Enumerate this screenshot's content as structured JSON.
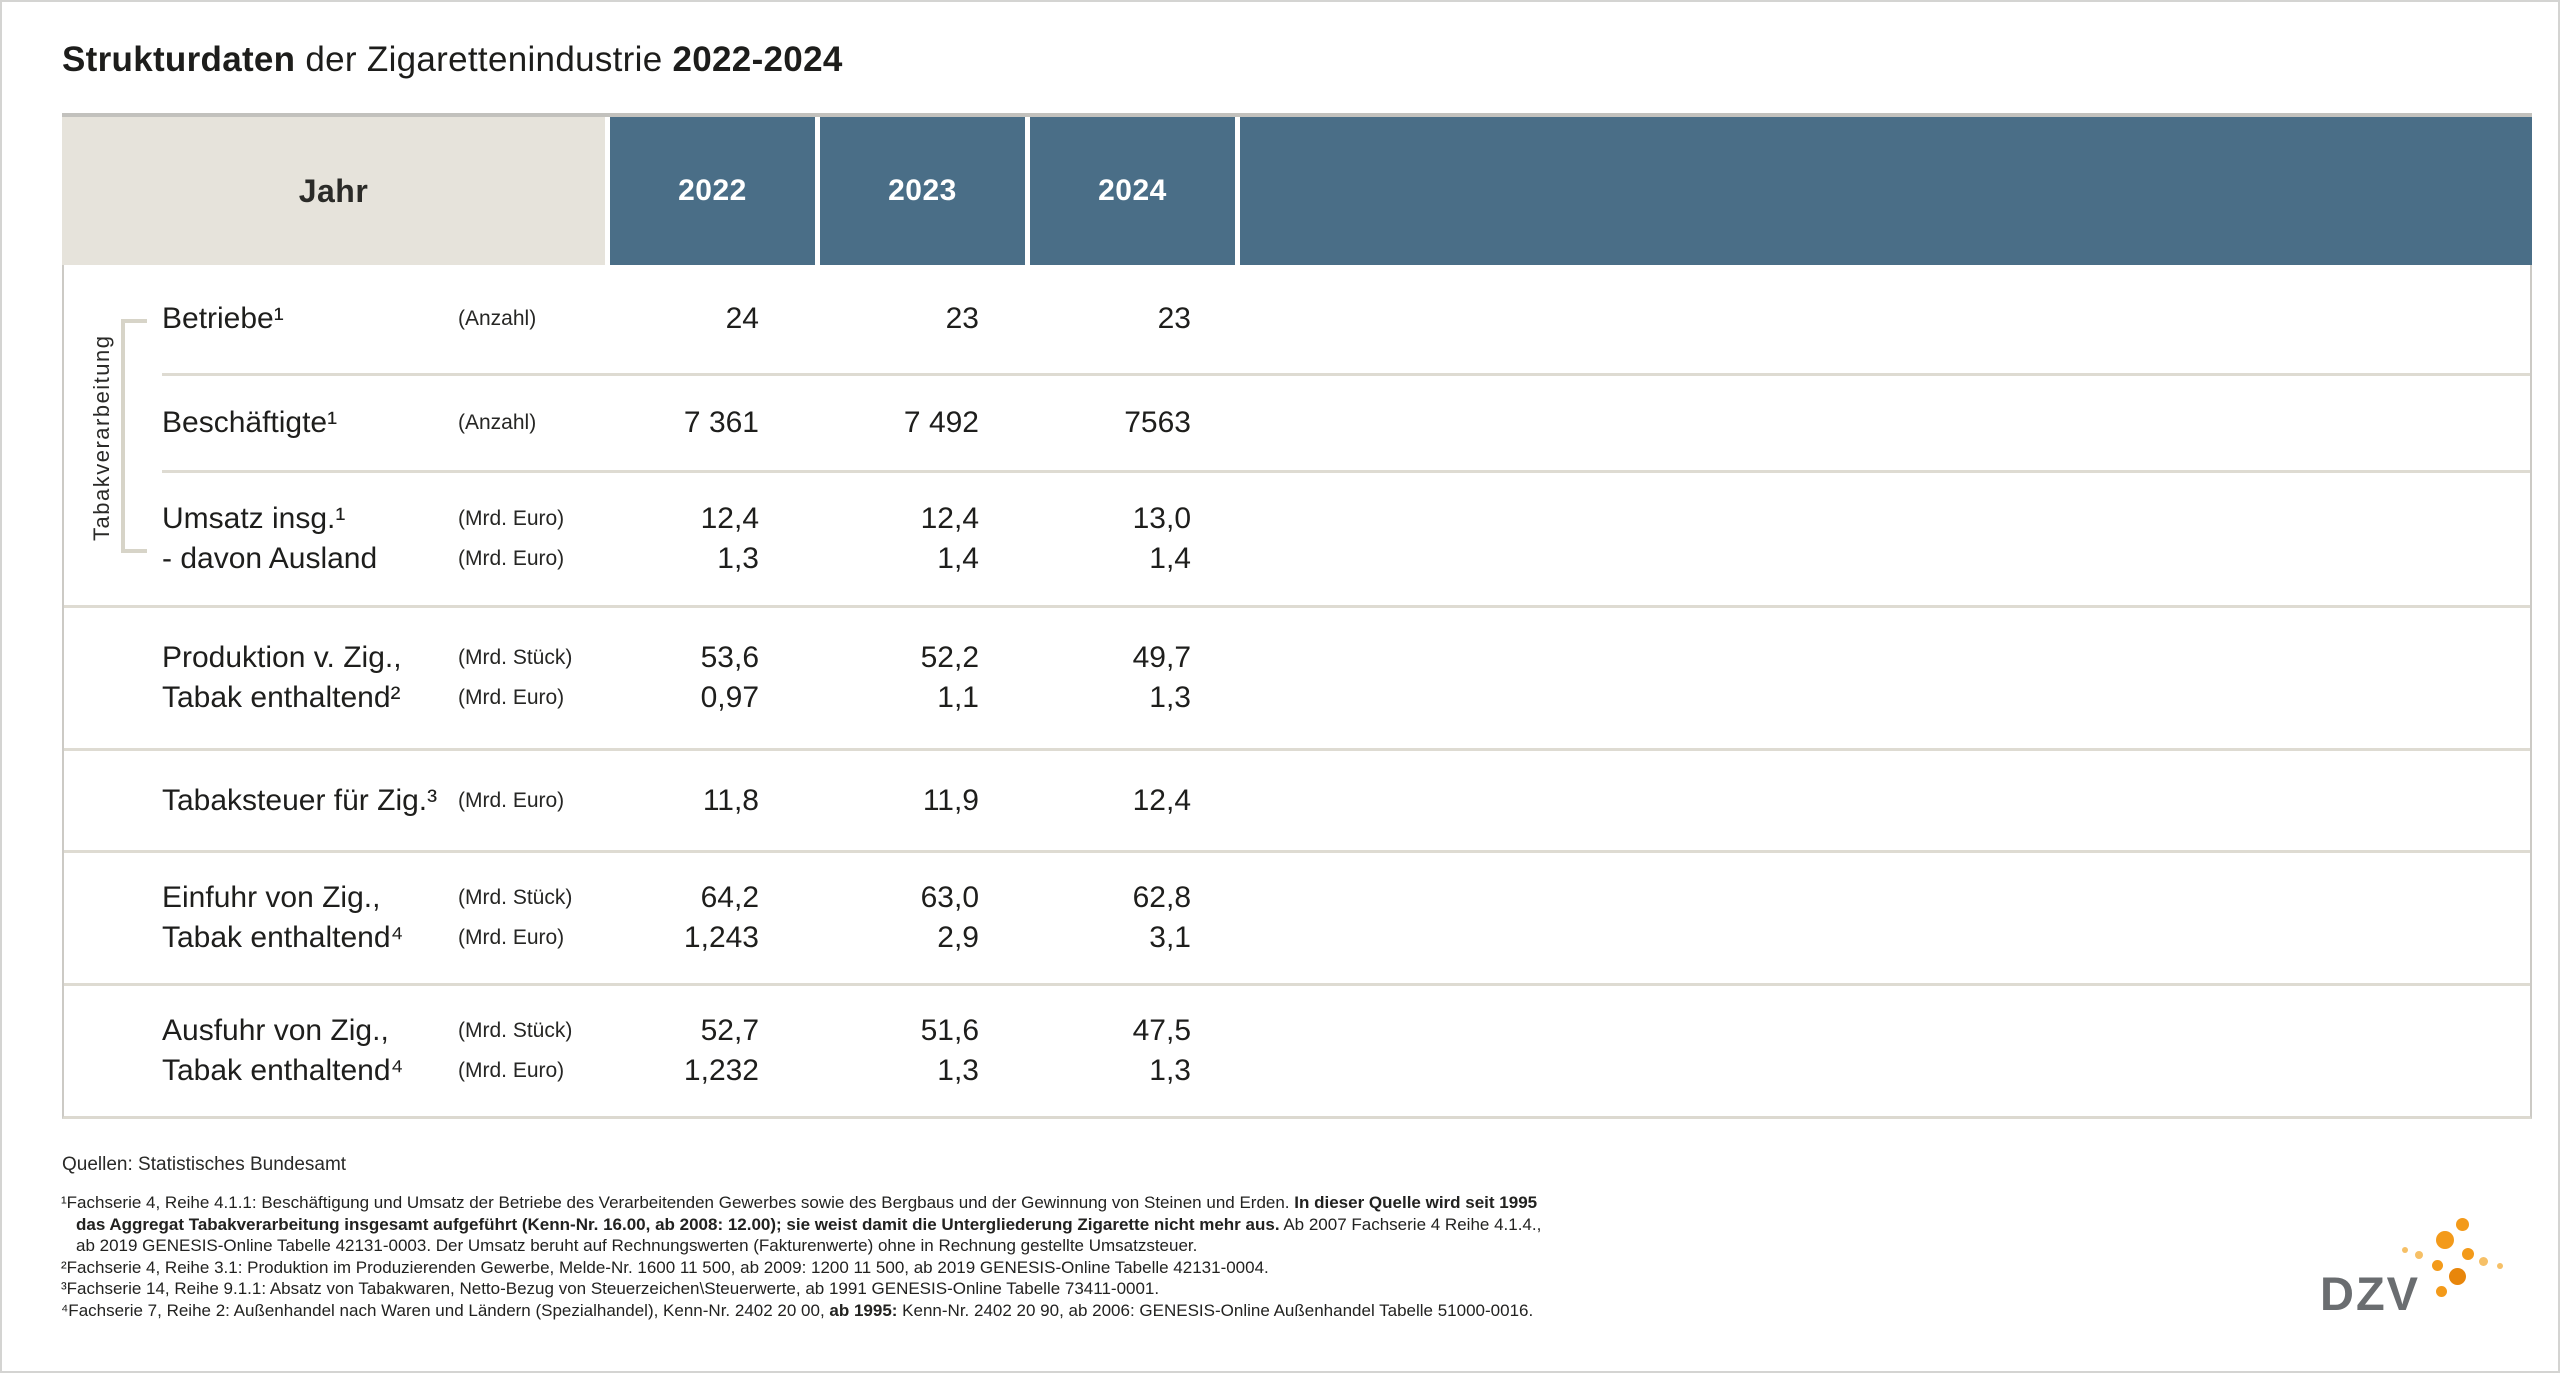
{
  "title": {
    "segments": [
      {
        "text": "Strukturdaten ",
        "bold": true
      },
      {
        "text": "der Zigarettenindustrie ",
        "bold": false
      },
      {
        "text": "2022-2024",
        "bold": true
      }
    ]
  },
  "colors": {
    "header_blue": "#4a6e87",
    "header_beige": "#e6e3db",
    "separator": "#dedbd2",
    "logo_gray": "#6a6d70",
    "logo_orange": "#f39a1a",
    "logo_orange_dark": "#e8860b",
    "logo_orange_light": "#f6c067"
  },
  "table": {
    "corner_label": "Jahr",
    "years": [
      "2022",
      "2023",
      "2024"
    ],
    "group_label": "Tabakverarbeitung",
    "sections": [
      {
        "name": "betriebe",
        "lines": [
          {
            "label": "Betriebe¹",
            "unit": "(Anzahl)",
            "values": [
              "24",
              "23",
              "23"
            ]
          }
        ]
      },
      {
        "name": "beschaeftigte",
        "lines": [
          {
            "label": "Beschäftigte¹",
            "unit": "(Anzahl)",
            "values": [
              "7 361",
              "7 492",
              "7563"
            ]
          }
        ]
      },
      {
        "name": "umsatz",
        "lines": [
          {
            "label": "Umsatz insg.¹",
            "unit": "(Mrd. Euro)",
            "values": [
              "12,4",
              "12,4",
              "13,0"
            ]
          },
          {
            "label": "- davon Ausland",
            "unit": "(Mrd. Euro)",
            "values": [
              "1,3",
              "1,4",
              "1,4"
            ]
          }
        ]
      },
      {
        "name": "produktion",
        "lines": [
          {
            "label": "Produktion v. Zig.,",
            "unit": "(Mrd. Stück)",
            "values": [
              "53,6",
              "52,2",
              "49,7"
            ]
          },
          {
            "label": "Tabak enthaltend²",
            "unit": "(Mrd. Euro)",
            "values": [
              "0,97",
              "1,1",
              "1,3"
            ]
          }
        ]
      },
      {
        "name": "tabaksteuer",
        "lines": [
          {
            "label": "Tabaksteuer für Zig.³",
            "unit": "(Mrd. Euro)",
            "values": [
              "11,8",
              "11,9",
              "12,4"
            ]
          }
        ]
      },
      {
        "name": "einfuhr",
        "lines": [
          {
            "label": "Einfuhr von Zig.,",
            "unit": "(Mrd. Stück)",
            "values": [
              "64,2",
              "63,0",
              "62,8"
            ]
          },
          {
            "label": "Tabak enthaltend⁴",
            "unit": "(Mrd. Euro)",
            "values": [
              "1,243",
              "2,9",
              "3,1"
            ]
          }
        ]
      },
      {
        "name": "ausfuhr",
        "lines": [
          {
            "label": "Ausfuhr von Zig.,",
            "unit": "(Mrd. Stück)",
            "values": [
              "52,7",
              "51,6",
              "47,5"
            ]
          },
          {
            "label": "Tabak enthaltend⁴",
            "unit": "(Mrd. Euro)",
            "values": [
              "1,232",
              "1,3",
              "1,3"
            ]
          }
        ]
      }
    ]
  },
  "source_line": "Quellen: Statistisches Bundesamt",
  "footnotes": {
    "lines": [
      [
        {
          "text": "¹Fachserie 4, Reihe 4.1.1: Beschäftigung und Umsatz der Betriebe des Verarbeitenden Gewerbes sowie des Bergbaus und der Gewinnung von Steinen und Erden. ",
          "bold": false
        },
        {
          "text": "In dieser Quelle wird seit 1995",
          "bold": true
        }
      ],
      [
        {
          "text": "das Aggregat Tabakverarbeitung insgesamt aufgeführt (Kenn-Nr. 16.00, ab 2008: 12.00); sie weist damit die Untergliederung Zigarette nicht mehr aus.",
          "bold": true
        },
        {
          "text": " Ab 2007 Fachserie 4 Reihe 4.1.4.,",
          "bold": false
        }
      ],
      [
        {
          "text": "ab 2019 GENESIS-Online Tabelle 42131-0003. Der Umsatz beruht auf Rechnungswerten (Fakturenwerte) ohne in Rechnung gestellte Umsatzsteuer.",
          "bold": false
        }
      ],
      [
        {
          "text": "²Fachserie 4, Reihe 3.1: Produktion im Produzierenden Gewerbe, Melde-Nr. 1600 11 500, ab 2009: 1200 11 500, ab 2019 GENESIS-Online Tabelle 42131-0004.",
          "bold": false
        }
      ],
      [
        {
          "text": "³Fachserie 14, Reihe 9.1.1: Absatz von Tabakwaren, Netto-Bezug von Steuerzeichen\\Steuerwerte, ab 1991 GENESIS-Online Tabelle 73411-0001.",
          "bold": false
        }
      ],
      [
        {
          "text": "⁴Fachserie 7, Reihe 2: Außenhandel nach Waren und Ländern (Spezialhandel), Kenn-Nr. 2402 20 00, ",
          "bold": false
        },
        {
          "text": "ab 1995:",
          "bold": true
        },
        {
          "text": " Kenn-Nr. 2402 20 90, ab 2006: GENESIS-Online Außenhandel Tabelle 51000-0016.",
          "bold": false
        }
      ]
    ]
  },
  "logo": {
    "text": "DZV"
  }
}
